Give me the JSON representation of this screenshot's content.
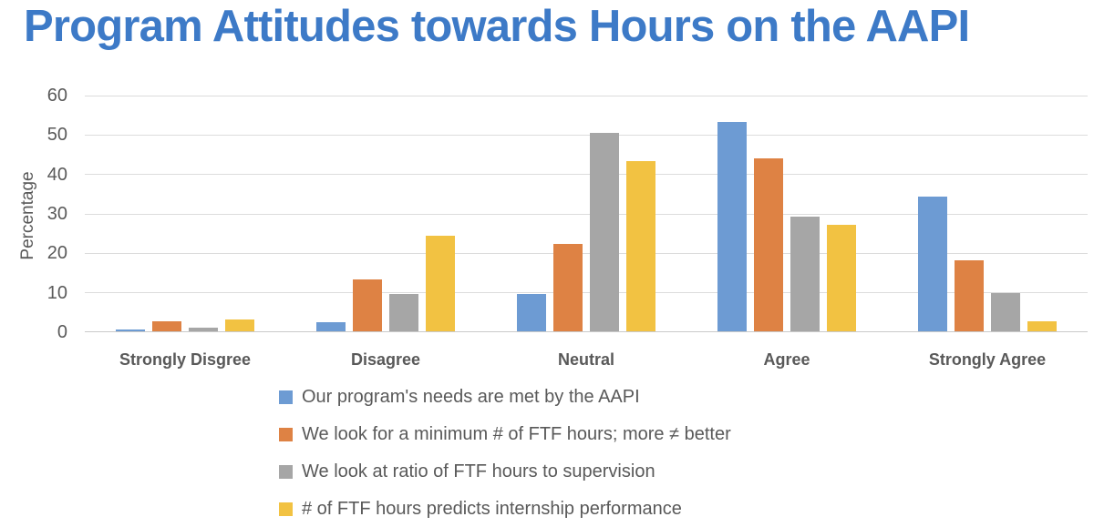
{
  "title": {
    "text": "Program Attitudes towards Hours on the AAPI"
  },
  "colors": {
    "title": "#3D7AC7",
    "text": "#595959",
    "gridline": "#DCDCDC",
    "axis": "#C9C9C9"
  },
  "chart_data": {
    "type": "bar",
    "title": "Program Attitudes towards Hours on the AAPI",
    "xlabel": "",
    "ylabel": "Percentage",
    "ylim": [
      0,
      60
    ],
    "yticks": [
      0,
      10,
      20,
      30,
      40,
      50,
      60
    ],
    "grid": "horizontal",
    "legend_position": "bottom-left",
    "categories": [
      "Strongly Disgree",
      "Disagree",
      "Neutral",
      "Agree",
      "Strongly Agree"
    ],
    "series": [
      {
        "key": "needs-met",
        "name": "Our program's needs are met by the AAPI",
        "color": "#6D9BD3",
        "values": [
          0.5,
          2.4,
          9.5,
          53.3,
          34.4
        ]
      },
      {
        "key": "minimum-ftf-hours",
        "name": "We look for a minimum # of FTF hours; more ≠ better",
        "color": "#DE8244",
        "values": [
          2.5,
          13.2,
          22.2,
          44.0,
          18.0
        ]
      },
      {
        "key": "ftf-supervision-ratio",
        "name": "We look at ratio of FTF hours to supervision",
        "color": "#A6A6A6",
        "values": [
          1.0,
          9.5,
          50.5,
          29.3,
          9.8
        ]
      },
      {
        "key": "ftf-predicts-performance",
        "name": "# of FTF hours predicts internship performance",
        "color": "#F2C242",
        "values": [
          3.0,
          24.3,
          43.3,
          27.0,
          2.5
        ]
      }
    ]
  }
}
